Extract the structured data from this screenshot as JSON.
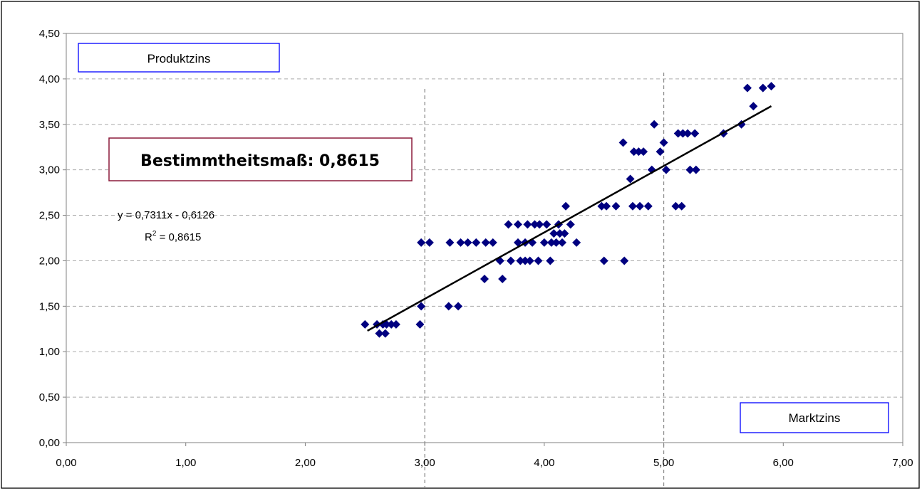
{
  "chart_data": {
    "type": "scatter",
    "xlabel": "Marktzins",
    "ylabel": "Produktzins",
    "xlim": [
      0,
      7
    ],
    "ylim": [
      0,
      4.5
    ],
    "x_ticks": [
      "0,00",
      "1,00",
      "2,00",
      "3,00",
      "4,00",
      "5,00",
      "6,00",
      "7,00"
    ],
    "y_ticks": [
      "0,00",
      "0,50",
      "1,00",
      "1,50",
      "2,00",
      "2,50",
      "3,00",
      "3,50",
      "4,00",
      "4,50"
    ],
    "vertical_reference_lines": [
      3.0,
      5.0
    ],
    "grid": "horizontal dashed",
    "marker_color": "#000080",
    "trendline": {
      "slope": 0.7311,
      "intercept": -0.6126,
      "x_range": [
        2.52,
        5.9
      ]
    },
    "equation_text": "y = 0,7311x - 0,6126",
    "r2_label": "R",
    "r2_sup": "2",
    "r2_value": " = 0,8615",
    "annotation": "Bestimmtheitsmaß: 0,8615",
    "points": [
      [
        2.5,
        1.3
      ],
      [
        2.6,
        1.3
      ],
      [
        2.62,
        1.2
      ],
      [
        2.65,
        1.3
      ],
      [
        2.67,
        1.2
      ],
      [
        2.68,
        1.3
      ],
      [
        2.72,
        1.3
      ],
      [
        2.76,
        1.3
      ],
      [
        2.96,
        1.3
      ],
      [
        2.97,
        1.5
      ],
      [
        2.97,
        2.2
      ],
      [
        3.04,
        2.2
      ],
      [
        3.2,
        1.5
      ],
      [
        3.21,
        2.2
      ],
      [
        3.28,
        1.5
      ],
      [
        3.3,
        2.2
      ],
      [
        3.36,
        2.2
      ],
      [
        3.43,
        2.2
      ],
      [
        3.5,
        1.8
      ],
      [
        3.51,
        2.2
      ],
      [
        3.57,
        2.2
      ],
      [
        3.63,
        2.0
      ],
      [
        3.65,
        1.8
      ],
      [
        3.7,
        2.4
      ],
      [
        3.72,
        2.0
      ],
      [
        3.78,
        2.2
      ],
      [
        3.78,
        2.4
      ],
      [
        3.8,
        2.0
      ],
      [
        3.84,
        2.0
      ],
      [
        3.84,
        2.2
      ],
      [
        3.86,
        2.4
      ],
      [
        3.88,
        2.0
      ],
      [
        3.9,
        2.2
      ],
      [
        3.92,
        2.4
      ],
      [
        3.95,
        2.0
      ],
      [
        3.96,
        2.4
      ],
      [
        4.0,
        2.2
      ],
      [
        4.02,
        2.4
      ],
      [
        4.05,
        2.0
      ],
      [
        4.06,
        2.2
      ],
      [
        4.08,
        2.3
      ],
      [
        4.1,
        2.2
      ],
      [
        4.12,
        2.4
      ],
      [
        4.13,
        2.3
      ],
      [
        4.15,
        2.2
      ],
      [
        4.17,
        2.3
      ],
      [
        4.18,
        2.6
      ],
      [
        4.22,
        2.4
      ],
      [
        4.27,
        2.2
      ],
      [
        4.48,
        2.6
      ],
      [
        4.5,
        2.0
      ],
      [
        4.52,
        2.6
      ],
      [
        4.6,
        2.6
      ],
      [
        4.66,
        3.3
      ],
      [
        4.67,
        2.0
      ],
      [
        4.72,
        2.9
      ],
      [
        4.74,
        2.6
      ],
      [
        4.75,
        3.2
      ],
      [
        4.79,
        3.2
      ],
      [
        4.8,
        2.6
      ],
      [
        4.83,
        3.2
      ],
      [
        4.87,
        2.6
      ],
      [
        4.9,
        3.0
      ],
      [
        4.92,
        3.5
      ],
      [
        4.97,
        3.2
      ],
      [
        5.0,
        3.3
      ],
      [
        5.02,
        3.0
      ],
      [
        5.1,
        2.6
      ],
      [
        5.12,
        3.4
      ],
      [
        5.15,
        2.6
      ],
      [
        5.16,
        3.4
      ],
      [
        5.2,
        3.4
      ],
      [
        5.22,
        3.0
      ],
      [
        5.26,
        3.4
      ],
      [
        5.27,
        3.0
      ],
      [
        5.5,
        3.4
      ],
      [
        5.65,
        3.5
      ],
      [
        5.7,
        3.9
      ],
      [
        5.75,
        3.7
      ],
      [
        5.83,
        3.9
      ],
      [
        5.9,
        3.92
      ]
    ]
  },
  "colors": {
    "marker": "#000080",
    "axis_box_border": "#0000ff",
    "annotation_border": "#8b1a3a",
    "grid": "#aaaaaa"
  }
}
